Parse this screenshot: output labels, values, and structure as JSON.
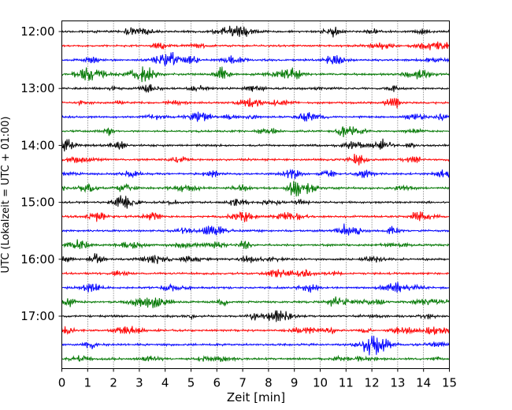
{
  "chart_data": {
    "type": "line",
    "title": "",
    "xlabel": "Zeit  [min]",
    "ylabel": "UTC (Lokalzeit = UTC + 01:00)",
    "xlim": [
      0,
      15
    ],
    "x_ticks": [
      0,
      1,
      2,
      3,
      4,
      5,
      6,
      7,
      8,
      9,
      10,
      11,
      12,
      13,
      14,
      15
    ],
    "x_tick_labels": [
      "0",
      "1",
      "2",
      "3",
      "4",
      "5",
      "6",
      "7",
      "8",
      "9",
      "10",
      "11",
      "12",
      "13",
      "14",
      "15"
    ],
    "y_tick_labels": [
      "12:00",
      "13:00",
      "14:00",
      "15:00",
      "16:00",
      "17:00"
    ],
    "row_start_minutes": [
      0,
      15,
      30,
      45,
      60,
      75,
      90,
      105,
      120,
      135,
      150,
      165,
      180,
      195,
      210,
      225,
      240,
      255,
      270,
      285,
      300,
      315,
      330,
      345
    ],
    "trace_colors": [
      "#000000",
      "#ff0000",
      "#0000ff",
      "#007700"
    ],
    "grid_vertical": true,
    "grid_style": "dotted",
    "legend": "none"
  }
}
